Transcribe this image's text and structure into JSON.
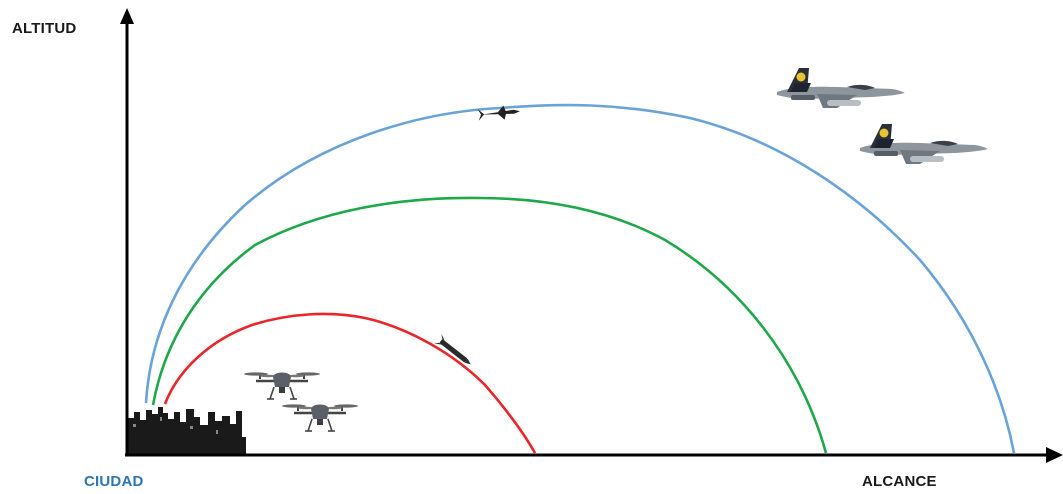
{
  "labels": {
    "y_axis": "ALTITUD",
    "x_axis": "ALCANCE",
    "origin": "CIUDAD"
  },
  "colors": {
    "axis": "#000000",
    "outer_arc": "#6aa3d8",
    "middle_arc": "#1fa84a",
    "inner_arc": "#e8262b",
    "origin_label": "#2e75b6",
    "city": "#1a1a1a"
  },
  "icons": {
    "city": "city-skyline-icon",
    "drone": "quadcopter-drone-icon",
    "jet": "fighter-jet-icon",
    "missile": "missile-icon",
    "rocket": "rocket-icon"
  },
  "layers": [
    {
      "name": "outer-defense-layer",
      "color_key": "outer_arc"
    },
    {
      "name": "middle-defense-layer",
      "color_key": "middle_arc"
    },
    {
      "name": "inner-defense-layer",
      "color_key": "inner_arc"
    }
  ]
}
